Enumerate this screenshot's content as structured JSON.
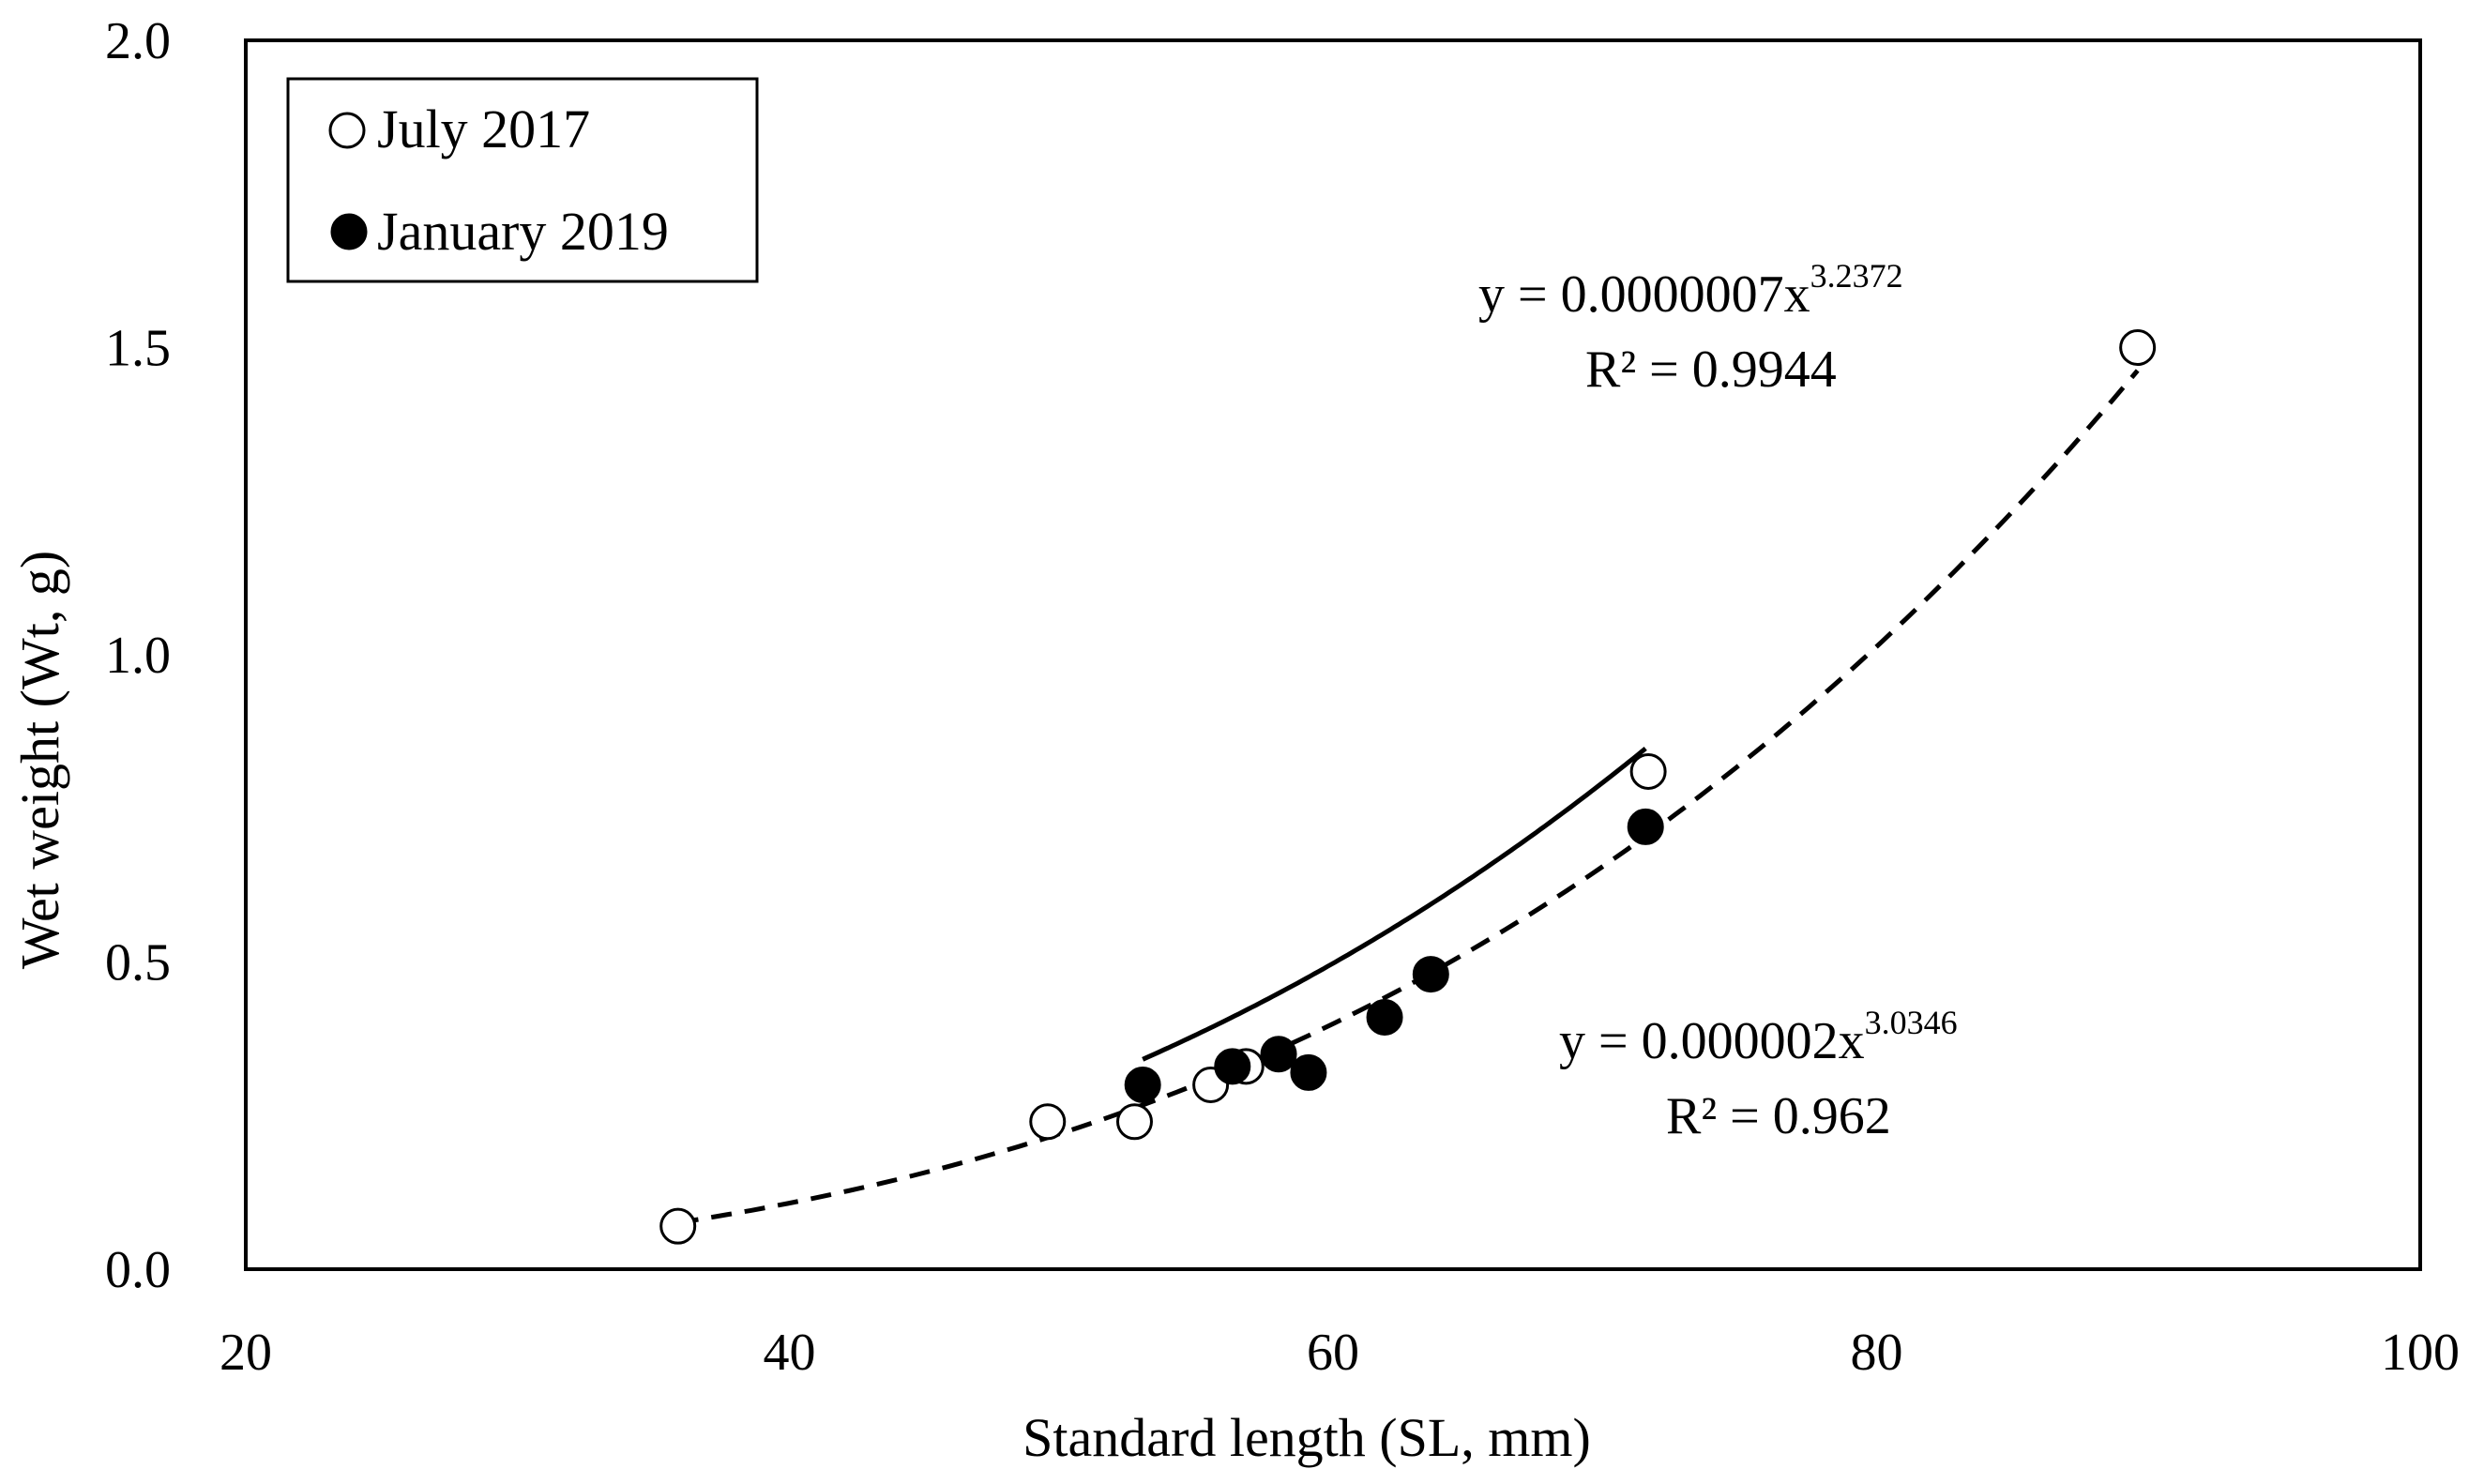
{
  "chart_data": {
    "type": "scatter",
    "xlabel": "Standard  length (SL, mm)",
    "ylabel": "Wet weight (Wt, g)",
    "xlim": [
      20,
      100
    ],
    "ylim": [
      0.0,
      2.0
    ],
    "xticks": [
      "20",
      "40",
      "60",
      "80",
      "100"
    ],
    "yticks": [
      "0.0",
      "0.5",
      "1.0",
      "1.5",
      "2.0"
    ],
    "legend_position": "top-left",
    "series": [
      {
        "name": "July 2017",
        "marker": "open-circle",
        "points": [
          {
            "x": 35.9,
            "y": 0.07
          },
          {
            "x": 49.5,
            "y": 0.24
          },
          {
            "x": 52.7,
            "y": 0.24
          },
          {
            "x": 55.5,
            "y": 0.3
          },
          {
            "x": 56.8,
            "y": 0.33
          },
          {
            "x": 71.6,
            "y": 0.81
          },
          {
            "x": 89.6,
            "y": 1.5
          }
        ],
        "fit": {
          "a": 7e-07,
          "b": 3.2372,
          "x_range": [
            35.9,
            89.6
          ],
          "style": "dashed",
          "equation_prefix": "y = 0.0000007x",
          "exponent": "3.2372",
          "r2": "R² = 0.9944"
        }
      },
      {
        "name": "January 2019",
        "marker": "filled-circle",
        "points": [
          {
            "x": 53.0,
            "y": 0.3
          },
          {
            "x": 56.3,
            "y": 0.33
          },
          {
            "x": 58.0,
            "y": 0.35
          },
          {
            "x": 59.1,
            "y": 0.32
          },
          {
            "x": 61.9,
            "y": 0.41
          },
          {
            "x": 63.6,
            "y": 0.48
          },
          {
            "x": 71.5,
            "y": 0.72
          }
        ],
        "fit": {
          "a": 2e-06,
          "b": 3.0346,
          "x_range": [
            53.0,
            71.5
          ],
          "style": "solid",
          "equation_prefix": "y = 0.000002x",
          "exponent": "3.0346",
          "r2": "R² = 0.962"
        }
      }
    ]
  }
}
